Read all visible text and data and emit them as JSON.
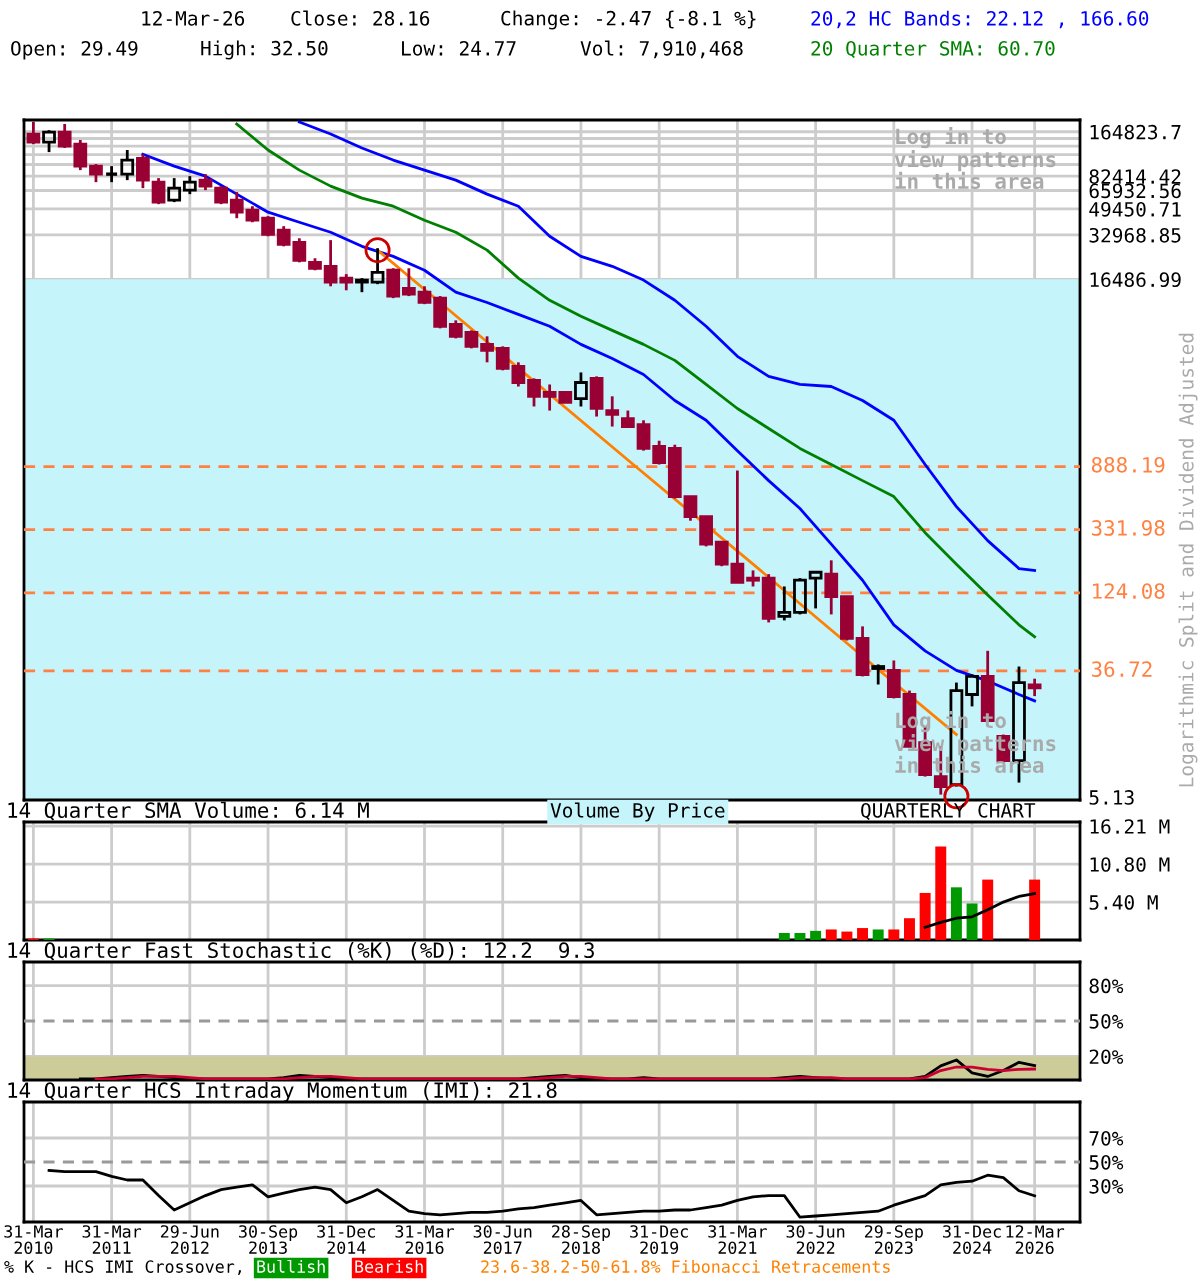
{
  "chart_data": [
    {
      "type": "candlestick",
      "colors": [
        "#990033",
        "#000000",
        "#990033",
        "#990033",
        "#990033",
        "#000000",
        "#000000",
        "#990033",
        "#990033",
        "#000000",
        "#000000",
        "#990033",
        "#990033",
        "#990033",
        "#990033",
        "#990033",
        "#990033",
        "#990033",
        "#990033",
        "#990033",
        "#990033",
        "#000000",
        "#000000",
        "#990033",
        "#990033",
        "#990033",
        "#990033",
        "#990033",
        "#990033",
        "#990033",
        "#990033",
        "#990033",
        "#990033",
        "#990033",
        "#990033",
        "#000000",
        "#990033",
        "#990033",
        "#990033",
        "#990033",
        "#990033",
        "#990033",
        "#990033",
        "#990033",
        "#990033",
        "#990033",
        "#990033",
        "#990033",
        "#000000",
        "#000000",
        "#000000",
        "#990033",
        "#990033",
        "#990033",
        "#000000",
        "#990033",
        "#990033",
        "#990033",
        "#990033",
        "#000000",
        "#000000",
        "#990033",
        "#990033",
        "#000000",
        "#990033"
      ],
      "log": true,
      "ylim": [
        4.9,
        198000
      ],
      "yticks": [
        5.13,
        16486.99,
        32968.85,
        49450.71,
        65932.56,
        82414.42,
        {
          "value": 98896.28,
          "label": null
        },
        {
          "value": 115378.13,
          "label": null
        },
        {
          "value": 131859.99,
          "label": null
        },
        {
          "value": 148341.85,
          "label": null
        },
        {
          "value": 164823.7,
          "label": "164823.7"
        }
      ],
      "tick_labels": "y",
      "grid": true,
      "categories": [
        null,
        null,
        null,
        null,
        null,
        null,
        null,
        null,
        null,
        null,
        null,
        null,
        null,
        null,
        null,
        null,
        null,
        null,
        null,
        null,
        null,
        null,
        null,
        null,
        null,
        null,
        null,
        null,
        null,
        null,
        null,
        null,
        null,
        null,
        null,
        null,
        null,
        null,
        null,
        null,
        null,
        null,
        null,
        null,
        null,
        null,
        null,
        null,
        null,
        null,
        null,
        null,
        null,
        null,
        null,
        null,
        null,
        null,
        null,
        null,
        null,
        null,
        null,
        null,
        null
      ],
      "ohlc": [
        [
          159000,
          192000,
          136000,
          140000
        ],
        [
          140000,
          169000,
          120000,
          164000
        ],
        [
          164000,
          186000,
          128000,
          132000
        ],
        [
          136000,
          145000,
          90600,
          96400
        ],
        [
          96400,
          99500,
          75100,
          85100
        ],
        [
          85100,
          96400,
          75100,
          85100
        ],
        [
          85100,
          124000,
          77500,
          106000
        ],
        [
          109000,
          116000,
          68400,
          77500
        ],
        [
          75100,
          80000,
          53300,
          55000
        ],
        [
          56700,
          80000,
          55000,
          68400
        ],
        [
          66300,
          82500,
          62300,
          75100
        ],
        [
          77500,
          85100,
          66300,
          70600
        ],
        [
          68400,
          70600,
          53300,
          55000
        ],
        [
          56700,
          64300,
          42800,
          47000
        ],
        [
          48500,
          51600,
          40200,
          41500
        ],
        [
          42800,
          44200,
          32300,
          33300
        ],
        [
          35500,
          37800,
          27600,
          28500
        ],
        [
          29400,
          31300,
          21500,
          22200
        ],
        [
          21500,
          22900,
          19000,
          19600
        ],
        [
          20200,
          30400,
          14800,
          15800
        ],
        [
          16800,
          17900,
          13900,
          15800
        ],
        [
          15800,
          16800,
          13500,
          16300
        ],
        [
          15800,
          26800,
          15300,
          18400
        ],
        [
          19000,
          19600,
          12300,
          12700
        ],
        [
          14300,
          19600,
          12700,
          13100
        ],
        [
          13500,
          14800,
          11200,
          11500
        ],
        [
          12300,
          12700,
          7680,
          7930
        ],
        [
          8180,
          8700,
          6570,
          6780
        ],
        [
          7220,
          7440,
          5620,
          5800
        ],
        [
          5980,
          6780,
          4520,
          5450
        ],
        [
          5620,
          5800,
          3990,
          4110
        ],
        [
          4240,
          4520,
          3100,
          3300
        ],
        [
          3410,
          3520,
          2270,
          2660
        ],
        [
          2830,
          3200,
          2130,
          2660
        ],
        [
          2830,
          2830,
          2420,
          2420
        ],
        [
          2570,
          3860,
          2270,
          3300
        ],
        [
          3520,
          3630,
          1940,
          2200
        ],
        [
          2130,
          2660,
          1660,
          2010
        ],
        [
          1880,
          2130,
          1660,
          1660
        ],
        [
          1710,
          1830,
          1140,
          1180
        ],
        [
          1220,
          1330,
          918,
          947
        ],
        [
          1180,
          1250,
          540,
          557
        ],
        [
          557,
          557,
          382,
          407
        ],
        [
          407,
          407,
          256,
          265
        ],
        [
          273,
          273,
          188,
          194
        ],
        [
          194,
          836,
          146,
          146
        ],
        [
          156,
          176,
          137,
          151
        ],
        [
          156,
          166,
          78.2,
          83.2
        ],
        [
          85.9,
          137,
          80.7,
          91.4
        ],
        [
          91.4,
          156,
          88.6,
          151
        ],
        [
          156,
          171,
          97.3,
          171
        ],
        [
          166,
          206,
          88.6,
          117
        ],
        [
          117,
          117,
          59.0,
          60.9
        ],
        [
          60.9,
          73.5,
          33.7,
          34.7
        ],
        [
          38.1,
          40.6,
          29.7,
          39.3
        ],
        [
          37.0,
          43.2,
          23.9,
          24.6
        ],
        [
          25.4,
          27.0,
          11.3,
          11.3
        ],
        [
          12.0,
          15.4,
          7.06,
          7.28
        ],
        [
          7.06,
          11.3,
          5.33,
          6.04
        ],
        [
          6.23,
          30.6,
          6.04,
          27.0
        ],
        [
          25.4,
          34.7,
          21.1,
          33.7
        ],
        [
          33.7,
          50.2,
          16.9,
          16.9
        ],
        [
          13.2,
          13.6,
          8.78,
          9.06
        ],
        [
          9.06,
          39.3,
          6.43,
          30.6
        ],
        [
          29.49,
          32.5,
          24.77,
          28.16
        ]
      ],
      "series": [
        {
          "type": "line",
          "name": "20,2 HC Bands: 22.12 , 166.60",
          "color": "#0000ff",
          "values": [
            null,
            null,
            null,
            null,
            null,
            null,
            null,
            null,
            null,
            null,
            null,
            null,
            null,
            null,
            null,
            null,
            null,
            192000,
            null,
            159000,
            null,
            128000,
            null,
            106000,
            null,
            90600,
            null,
            77500,
            null,
            62300,
            null,
            51600,
            null,
            32300,
            null,
            23600,
            null,
            20200,
            null,
            16300,
            null,
            11900,
            null,
            7930,
            null,
            4960,
            null,
            3630,
            null,
            3200,
            null,
            3100,
            null,
            2490,
            null,
            1830,
            null,
            918,
            null,
            476,
            null,
            280,
            null,
            181,
            176
          ]
        },
        {
          "type": "line",
          "color": "#0000ff",
          "values": [
            null,
            null,
            null,
            null,
            null,
            null,
            null,
            116000,
            null,
            96400,
            null,
            82500,
            null,
            62300,
            null,
            47000,
            null,
            40200,
            null,
            34400,
            null,
            27600,
            null,
            23600,
            null,
            19000,
            null,
            13500,
            null,
            11500,
            null,
            9550,
            null,
            7930,
            null,
            5980,
            null,
            4800,
            null,
            3740,
            null,
            2490,
            null,
            1830,
            null,
            1140,
            null,
            714,
            null,
            462,
            null,
            265,
            null,
            151,
            null,
            75.3,
            null,
            50.2,
            null,
            37.0,
            null,
            31.4,
            null,
            25.4,
            23.0
          ]
        },
        {
          "type": "line",
          "name": "20 Quarter SMA: 60.70",
          "color": "#008000",
          "values": [
            null,
            null,
            null,
            null,
            null,
            null,
            null,
            null,
            null,
            null,
            null,
            null,
            null,
            186000,
            null,
            124000,
            null,
            90600,
            null,
            70600,
            null,
            58500,
            null,
            51600,
            null,
            41500,
            null,
            34400,
            null,
            26000,
            null,
            16800,
            null,
            11900,
            null,
            9260,
            null,
            7440,
            null,
            5980,
            null,
            4660,
            null,
            3200,
            null,
            2200,
            null,
            1610,
            null,
            1180,
            null,
            918,
            null,
            714,
            null,
            557,
            null,
            317,
            null,
            194,
            null,
            120,
            null,
            75.3,
            62.5
          ]
        },
        {
          "type": "line",
          "color": "#ff8000",
          "values": [
            null,
            null,
            null,
            null,
            null,
            null,
            null,
            null,
            null,
            null,
            null,
            null,
            null,
            null,
            null,
            null,
            null,
            null,
            null,
            null,
            null,
            null,
            26000,
            null,
            null,
            null,
            null,
            null,
            null,
            null,
            5070,
            null,
            null,
            null,
            null,
            null,
            null,
            null,
            985,
            null,
            null,
            null,
            null,
            null,
            null,
            null,
            194,
            null,
            null,
            null,
            null,
            null,
            null,
            null,
            37.5,
            null,
            null,
            null,
            null,
            13.6,
            null,
            null,
            null,
            null,
            null
          ]
        },
        {
          "type": "scatter",
          "marker": "circle",
          "color": "#cc0000",
          "values": [
            null,
            null,
            null,
            null,
            null,
            null,
            null,
            null,
            null,
            null,
            null,
            null,
            null,
            null,
            null,
            null,
            null,
            null,
            null,
            null,
            null,
            null,
            26000,
            null,
            null,
            null,
            null,
            null,
            null,
            null,
            null,
            null,
            null,
            null,
            null,
            null,
            null,
            null,
            null,
            null,
            null,
            null,
            null,
            null,
            null,
            null,
            null,
            null,
            null,
            null,
            null,
            null,
            null,
            null,
            null,
            null,
            null,
            null,
            null,
            5.2,
            null,
            null,
            null,
            null,
            null
          ]
        }
      ],
      "ref_lines": [
        {
          "axis": "y",
          "value": 888.19,
          "label": "888.19",
          "color": "#ff8040",
          "line_style": "dashed"
        },
        {
          "axis": "y",
          "value": 331.98,
          "label": "331.98",
          "color": "#ff8040",
          "line_style": "dashed"
        },
        {
          "axis": "y",
          "value": 124.08,
          "label": "124.08",
          "color": "#ff8040",
          "line_style": "dashed"
        },
        {
          "axis": "y",
          "value": 36.72,
          "label": "36.72",
          "color": "#ff8040",
          "line_style": "dashed"
        }
      ],
      "bands": [
        {
          "axis": "y",
          "from": 4.9,
          "to": 16486.99,
          "color": "#c6f4fb"
        }
      ],
      "annotations": [
        "12-Mar-26",
        "Close: 28.16",
        "Change: -2.47 {-8.1 %}",
        "Open: 29.49",
        "High: 32.50",
        "Low: 24.77",
        "Vol: 7,910,468",
        "Log in to\nview patterns\nin this area",
        "Log in to\nview patterns\nin this area",
        "Split and Dividend Adjusted",
        "Logarithmic"
      ]
    },
    {
      "type": "bar",
      "title": "14 Quarter SMA Volume: 6.14 M",
      "ylim": [
        0,
        16.8
      ],
      "yticks": [
        {
          "value": 5.4,
          "label": "5.40 M"
        },
        {
          "value": 10.8,
          "label": "10.80 M"
        },
        {
          "value": 16.21,
          "label": "16.21 M"
        }
      ],
      "tick_labels": "y",
      "grid": true,
      "categories": [
        null,
        null,
        null,
        null,
        null,
        null,
        null,
        null,
        null,
        null,
        null,
        null,
        null,
        null,
        null,
        null,
        null,
        null,
        null,
        null,
        null,
        null,
        null,
        null,
        null,
        null,
        null,
        null,
        null,
        null,
        null,
        null,
        null,
        null,
        null,
        null,
        null,
        null,
        null,
        null,
        null,
        null,
        null,
        null,
        null,
        null,
        null,
        null,
        null,
        null,
        null,
        null,
        null,
        null,
        null,
        null,
        null,
        null,
        null,
        null,
        null,
        null,
        null,
        null,
        null
      ],
      "series": [
        {
          "type": "bar",
          "values": [
            0.2,
            0.2,
            null,
            null,
            null,
            null,
            null,
            null,
            null,
            null,
            null,
            null,
            null,
            null,
            null,
            null,
            null,
            null,
            null,
            null,
            null,
            null,
            null,
            null,
            null,
            null,
            null,
            null,
            null,
            null,
            null,
            null,
            null,
            null,
            null,
            null,
            null,
            null,
            null,
            null,
            null,
            null,
            null,
            null,
            null,
            null,
            null,
            null,
            1.0,
            1.0,
            1.3,
            1.5,
            1.2,
            1.7,
            1.5,
            1.5,
            3.1,
            6.7,
            13.3,
            7.5,
            5.2,
            8.6,
            null,
            null,
            8.6
          ],
          "colors": [
            "#ff0000",
            "#009900",
            null,
            null,
            null,
            null,
            null,
            null,
            null,
            null,
            null,
            null,
            null,
            null,
            null,
            null,
            null,
            null,
            null,
            null,
            null,
            null,
            null,
            null,
            null,
            null,
            null,
            null,
            null,
            null,
            null,
            null,
            null,
            null,
            null,
            null,
            null,
            null,
            null,
            null,
            null,
            null,
            null,
            null,
            null,
            null,
            null,
            null,
            "#009900",
            "#009900",
            "#009900",
            "#ff0000",
            "#ff0000",
            "#ff0000",
            "#009900",
            "#ff0000",
            "#ff0000",
            "#ff0000",
            "#ff0000",
            "#009900",
            "#009900",
            "#ff0000",
            "#ff0000",
            "#009900",
            "#ff0000"
          ]
        },
        {
          "type": "line",
          "color": "#000000",
          "values": [
            null,
            null,
            null,
            null,
            null,
            null,
            null,
            null,
            null,
            null,
            null,
            null,
            null,
            null,
            null,
            null,
            null,
            null,
            null,
            null,
            null,
            null,
            null,
            null,
            null,
            null,
            null,
            null,
            null,
            null,
            null,
            null,
            null,
            null,
            null,
            null,
            null,
            null,
            null,
            null,
            null,
            null,
            null,
            null,
            null,
            null,
            null,
            null,
            null,
            null,
            null,
            null,
            null,
            null,
            null,
            null,
            null,
            1.8,
            2.5,
            3.1,
            3.3,
            4.3,
            5.4,
            6.2,
            6.6
          ]
        }
      ],
      "annotations": [
        "Volume By Price",
        "QUARTERLY CHART"
      ]
    },
    {
      "type": "line",
      "title": "14 Quarter Fast Stochastic (%K) (%D): 12.2  9.3",
      "ylim": [
        0,
        100
      ],
      "yticks": [
        {
          "value": 20,
          "label": "20%"
        },
        {
          "value": 50,
          "label": "50%"
        },
        {
          "value": 80,
          "label": "80%"
        }
      ],
      "tick_labels": "y",
      "grid": true,
      "categories": [
        null,
        null,
        null,
        null,
        null,
        null,
        null,
        null,
        null,
        null,
        null,
        null,
        null,
        null,
        null,
        null,
        null,
        null,
        null,
        null,
        null,
        null,
        null,
        null,
        null,
        null,
        null,
        null,
        null,
        null,
        null,
        null,
        null,
        null,
        null,
        null,
        null,
        null,
        null,
        null,
        null,
        null,
        null,
        null,
        null,
        null,
        null,
        null,
        null,
        null,
        null,
        null,
        null,
        null,
        null,
        null,
        null,
        null,
        null,
        null,
        null,
        null,
        null,
        null,
        null
      ],
      "series": [
        {
          "type": "line",
          "color": "#000000",
          "values": [
            null,
            null,
            null,
            1,
            1,
            2,
            3,
            4,
            3,
            2,
            1,
            1,
            1,
            1,
            1,
            1,
            2,
            4,
            3,
            2,
            1,
            1,
            1,
            1,
            1,
            1,
            1,
            1,
            1,
            1,
            1,
            1,
            2,
            3,
            4,
            2,
            1,
            1,
            1,
            2,
            1,
            1,
            1,
            1,
            1,
            1,
            1,
            1,
            2,
            3,
            2,
            1,
            1,
            1,
            1,
            1,
            1,
            3,
            12,
            17,
            6,
            3,
            8,
            15,
            12.2
          ]
        },
        {
          "type": "line",
          "color": "#cc0033",
          "values": [
            null,
            null,
            null,
            null,
            1,
            1,
            2,
            3,
            3,
            3,
            2,
            1,
            1,
            1,
            1,
            1,
            1,
            2,
            3,
            3,
            2,
            1,
            1,
            1,
            1,
            1,
            1,
            1,
            1,
            1,
            1,
            1,
            1,
            2,
            3,
            3,
            2,
            1,
            1,
            1,
            1,
            1,
            1,
            1,
            1,
            1,
            1,
            1,
            1,
            2,
            2,
            2,
            1,
            1,
            1,
            1,
            1,
            2,
            8,
            11,
            11,
            9,
            8,
            9,
            9.3
          ]
        }
      ],
      "bands": [
        {
          "axis": "y",
          "from": 0,
          "to": 20,
          "color": "#cccc99"
        }
      ],
      "ref_lines": [
        {
          "axis": "y",
          "value": 50,
          "color": "#999999",
          "line_style": "dashed"
        }
      ]
    },
    {
      "type": "line",
      "title": "14 Quarter HCS Intraday Momentum (IMI): 21.8",
      "ylim": [
        0,
        100
      ],
      "yticks": [
        {
          "value": 30,
          "label": "30%"
        },
        {
          "value": 50,
          "label": "50%"
        },
        {
          "value": 70,
          "label": "70%"
        }
      ],
      "grid": true,
      "categories": [
        "31-Mar\n2010",
        null,
        null,
        null,
        null,
        "31-Mar\n2011",
        null,
        null,
        null,
        null,
        "29-Jun\n2012",
        null,
        null,
        null,
        null,
        "30-Sep\n2013",
        null,
        null,
        null,
        null,
        "31-Dec\n2014",
        null,
        null,
        null,
        null,
        "31-Mar\n2016",
        null,
        null,
        null,
        null,
        "30-Jun\n2017",
        null,
        null,
        null,
        null,
        "28-Sep\n2018",
        null,
        null,
        null,
        null,
        "31-Dec\n2019",
        null,
        null,
        null,
        null,
        "31-Mar\n2021",
        null,
        null,
        null,
        null,
        "30-Jun\n2022",
        null,
        null,
        null,
        null,
        "29-Sep\n2023",
        null,
        null,
        null,
        null,
        "31-Dec\n2024",
        null,
        null,
        null,
        "12-Mar\n2026"
      ],
      "series": [
        {
          "type": "line",
          "color": "#000000",
          "values": [
            null,
            43,
            42,
            42,
            42,
            38,
            35,
            35,
            22,
            10,
            16,
            22,
            27,
            29,
            31,
            21,
            24,
            27,
            29,
            27,
            16,
            21,
            27,
            18,
            9,
            7,
            6,
            7,
            8,
            8,
            9,
            11,
            12,
            14,
            16,
            18,
            6,
            7,
            8,
            9,
            9,
            10,
            10,
            12,
            14,
            18,
            21,
            22,
            22,
            4,
            5,
            6,
            7,
            8,
            9,
            14,
            18,
            22,
            31,
            33,
            34,
            39,
            37,
            26,
            21.8
          ]
        }
      ],
      "ref_lines": [
        {
          "axis": "y",
          "value": 50,
          "color": "#999999",
          "line_style": "dashed"
        }
      ],
      "annotations": [
        "% K - HCS IMI Crossover,",
        "Bullish",
        "Bearish",
        "23.6-38.2-50-61.8% Fibonacci Retracements"
      ]
    }
  ]
}
